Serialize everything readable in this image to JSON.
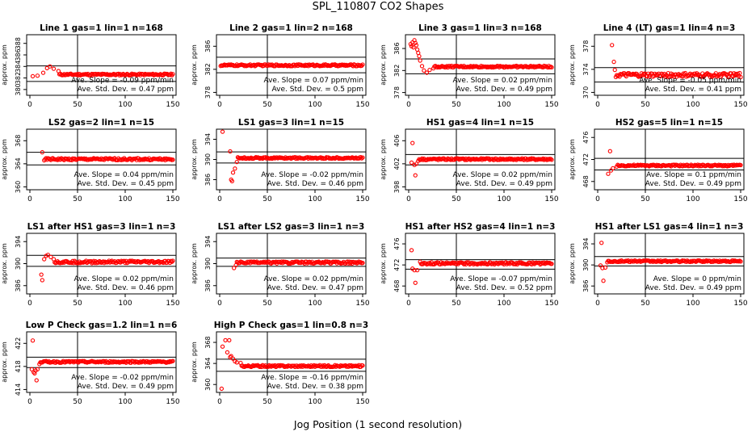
{
  "figure": {
    "title": "SPL_110807  CO2 Shapes",
    "xlabel": "Jog Position (1 second resolution)"
  },
  "colors": {
    "points": "#ff0000",
    "axes": "#000000"
  },
  "chart_data": [
    {
      "type": "scatter",
      "title": "Line 1 gas=1 lin=1 n=168",
      "ylabel": "approx. ppm",
      "xlim": [
        0,
        150
      ],
      "ylim": [
        379,
        389.5
      ],
      "yticks": [
        380,
        382,
        384,
        386,
        388
      ],
      "xticks": [
        0,
        50,
        100,
        150
      ],
      "hlines": [
        384.1,
        381.4
      ],
      "vline": 50,
      "slope": "Ave. Slope = -0.09 ppm/min",
      "std": "Ave. Std. Dev. = 0.47 ppm",
      "shape": {
        "start": 382.5,
        "steady": 382.6,
        "spikes": [
          [
            3,
            382.3
          ],
          [
            8,
            382.4
          ],
          [
            14,
            382.9
          ],
          [
            18,
            383.7
          ],
          [
            21,
            384.0
          ],
          [
            25,
            383.6
          ],
          [
            30,
            383.2
          ]
        ],
        "noise": 0.15
      }
    },
    {
      "type": "scatter",
      "title": "Line 2 gas=1 lin=2 n=168",
      "ylabel": "approx. ppm",
      "xlim": [
        0,
        150
      ],
      "ylim": [
        377.5,
        388
      ],
      "yticks": [
        378,
        382,
        386
      ],
      "xticks": [
        0,
        50,
        100,
        150
      ],
      "hlines": [
        384.1,
        381.4
      ],
      "vline": 50,
      "slope": "Ave. Slope = 0.07 ppm/min",
      "std": "Ave. Std. Dev. = 0.5 ppm",
      "shape": {
        "start": 382.7,
        "steady": 382.7,
        "spikes": [],
        "noise": 0.15
      }
    },
    {
      "type": "scatter",
      "title": "Line 3 gas=1 lin=3 n=168",
      "ylabel": "approx. ppm",
      "xlim": [
        0,
        150
      ],
      "ylim": [
        377.5,
        388.5
      ],
      "yticks": [
        378,
        382,
        386
      ],
      "xticks": [
        0,
        50,
        100,
        150
      ],
      "hlines": [
        384.1,
        381.4
      ],
      "vline": 50,
      "slope": "Ave. Slope = 0.02 ppm/min",
      "std": "Ave. Std. Dev. = 0.49 ppm",
      "shape": {
        "start": 382.7,
        "steady": 382.7,
        "spikes": [
          [
            2,
            386.8
          ],
          [
            3,
            386.4
          ],
          [
            4,
            387.1
          ],
          [
            5,
            386.2
          ],
          [
            6,
            387.5
          ],
          [
            7,
            387.0
          ],
          [
            8,
            386.6
          ],
          [
            9,
            385.8
          ],
          [
            10,
            385.2
          ],
          [
            11,
            384.6
          ],
          [
            12,
            383.8
          ],
          [
            14,
            382.8
          ],
          [
            16,
            382.0
          ],
          [
            19,
            381.6
          ],
          [
            22,
            382.1
          ],
          [
            26,
            382.4
          ]
        ],
        "noise": 0.15
      }
    },
    {
      "type": "scatter",
      "title": "Line 4 (LT) gas=1 lin=4 n=3",
      "ylabel": "approx. ppm",
      "xlim": [
        0,
        150
      ],
      "ylim": [
        369.5,
        380
      ],
      "yticks": [
        370,
        374,
        378
      ],
      "xticks": [
        0,
        50,
        100,
        150
      ],
      "hlines": [
        374.3,
        371.8
      ],
      "vline": 50,
      "slope": "Ave. Slope = -0.05 ppm/min",
      "std": "Ave. Std. Dev. = 0.41 ppm",
      "shape": {
        "start": 373.0,
        "steady": 373.0,
        "spikes": [
          [
            15,
            378.2
          ],
          [
            17,
            375.3
          ],
          [
            18,
            373.9
          ]
        ],
        "noise": 0.35
      }
    },
    {
      "type": "scatter",
      "title": "LS2 gas=2 lin=1 n=15",
      "ylabel": "approx. ppm",
      "xlim": [
        0,
        150
      ],
      "ylim": [
        359.5,
        370
      ],
      "yticks": [
        360,
        364,
        368
      ],
      "xticks": [
        0,
        50,
        100,
        150
      ],
      "hlines": [
        366.0,
        363.8
      ],
      "vline": 50,
      "slope": "Ave. Slope = 0.04 ppm/min",
      "std": "Ave. Std. Dev. = 0.45 ppm",
      "shape": {
        "start": 364.8,
        "steady": 364.8,
        "spikes": [
          [
            13,
            366.0
          ],
          [
            15,
            364.6
          ]
        ],
        "noise": 0.18
      }
    },
    {
      "type": "scatter",
      "title": "LS1 gas=3 lin=1 n=15",
      "ylabel": "approx. ppm",
      "xlim": [
        0,
        150
      ],
      "ylim": [
        384,
        396
      ],
      "yticks": [
        386,
        390,
        394
      ],
      "xticks": [
        0,
        50,
        100,
        150
      ],
      "hlines": [
        391.5,
        389.3
      ],
      "vline": 50,
      "slope": "Ave. Slope = -0.02 ppm/min",
      "std": "Ave. Std. Dev. = 0.46 ppm",
      "shape": {
        "start": 390.3,
        "steady": 390.3,
        "spikes": [
          [
            3,
            395.5
          ],
          [
            11,
            391.6
          ],
          [
            12,
            386.0
          ],
          [
            13,
            385.7
          ],
          [
            14,
            387.4
          ],
          [
            16,
            388.2
          ],
          [
            18,
            389.5
          ]
        ],
        "noise": 0.15
      }
    },
    {
      "type": "scatter",
      "title": "HS1 gas=4 lin=1 n=15",
      "ylabel": "approx. ppm",
      "xlim": [
        0,
        150
      ],
      "ylim": [
        397.5,
        408
      ],
      "yticks": [
        398,
        402,
        406
      ],
      "xticks": [
        0,
        50,
        100,
        150
      ],
      "hlines": [
        403.6,
        401.8
      ],
      "vline": 50,
      "slope": "Ave. Slope = 0.02 ppm/min",
      "std": "Ave. Std. Dev. = 0.49 ppm",
      "shape": {
        "start": 402.8,
        "steady": 402.8,
        "spikes": [
          [
            3,
            402.2
          ],
          [
            4,
            405.6
          ],
          [
            6,
            401.8
          ],
          [
            7,
            400.0
          ],
          [
            8,
            402.0
          ],
          [
            10,
            402.5
          ]
        ],
        "noise": 0.15
      }
    },
    {
      "type": "scatter",
      "title": "HS2 gas=5 lin=1 n=15",
      "ylabel": "approx. ppm",
      "xlim": [
        0,
        150
      ],
      "ylim": [
        466.5,
        477.5
      ],
      "yticks": [
        468,
        472,
        476
      ],
      "xticks": [
        0,
        50,
        100,
        150
      ],
      "hlines": [
        472.2,
        470.1
      ],
      "vline": 50,
      "slope": "Ave. Slope = 0.1 ppm/min",
      "std": "Ave. Std. Dev. = 0.49 ppm",
      "shape": {
        "start": 470.9,
        "steady": 470.9,
        "spikes": [
          [
            11,
            469.4
          ],
          [
            13,
            473.5
          ],
          [
            14,
            470.0
          ],
          [
            16,
            470.4
          ],
          [
            20,
            470.7
          ]
        ],
        "noise": 0.15
      }
    },
    {
      "type": "scatter",
      "title": "LS1 after HS1 gas=3 lin=1 n=3",
      "ylabel": "approx. ppm",
      "xlim": [
        0,
        150
      ],
      "ylim": [
        384.5,
        395.5
      ],
      "yticks": [
        386,
        390,
        394
      ],
      "xticks": [
        0,
        50,
        100,
        150
      ],
      "hlines": [
        391.5,
        389.5
      ],
      "vline": 50,
      "slope": "Ave. Slope = 0.02 ppm/min",
      "std": "Ave. Std. Dev. = 0.46 ppm",
      "shape": {
        "start": 390.5,
        "steady": 390.3,
        "spikes": [
          [
            12,
            388.0
          ],
          [
            13,
            387.0
          ],
          [
            15,
            390.8
          ],
          [
            17,
            391.4
          ],
          [
            19,
            391.6
          ],
          [
            22,
            391.2
          ],
          [
            25,
            390.8
          ]
        ],
        "noise": 0.22
      }
    },
    {
      "type": "scatter",
      "title": "LS1 after LS2 gas=3 lin=1 n=3",
      "ylabel": "approx. ppm",
      "xlim": [
        0,
        150
      ],
      "ylim": [
        384.5,
        395.5
      ],
      "yticks": [
        386,
        390,
        394
      ],
      "xticks": [
        0,
        50,
        100,
        150
      ],
      "hlines": [
        391.0,
        389.5
      ],
      "vline": 50,
      "slope": "Ave. Slope = 0.02 ppm/min",
      "std": "Ave. Std. Dev. = 0.47 ppm",
      "shape": {
        "start": 389.6,
        "steady": 390.2,
        "spikes": [
          [
            15,
            389.2
          ],
          [
            17,
            389.7
          ]
        ],
        "noise": 0.18
      }
    },
    {
      "type": "scatter",
      "title": "HS1 after HS2 gas=4 lin=1 n=3",
      "ylabel": "approx. ppm",
      "xlim": [
        0,
        150
      ],
      "ylim": [
        466.5,
        478
      ],
      "yticks": [
        468,
        472,
        476
      ],
      "xticks": [
        0,
        50,
        100,
        150
      ],
      "hlines": [
        473.0,
        471.2
      ],
      "vline": 50,
      "slope": "Ave. Slope = -0.07 ppm/min",
      "std": "Ave. Std. Dev. = 0.52 ppm",
      "shape": {
        "start": 472.3,
        "steady": 472.3,
        "spikes": [
          [
            3,
            474.8
          ],
          [
            4,
            471.3
          ],
          [
            6,
            471.0
          ],
          [
            7,
            468.6
          ],
          [
            9,
            471.0
          ],
          [
            12,
            472.6
          ]
        ],
        "noise": 0.2
      }
    },
    {
      "type": "scatter",
      "title": "HS1 after LS1 gas=4 lin=1 n=3",
      "ylabel": "approx. ppm",
      "xlim": [
        0,
        150
      ],
      "ylim": [
        384.5,
        396
      ],
      "yticks": [
        386,
        390,
        394
      ],
      "xticks": [
        0,
        50,
        100,
        150
      ],
      "hlines": [
        391.6,
        389.8
      ],
      "vline": 50,
      "slope": "Ave. Slope = 0 ppm/min",
      "std": "Ave. Std. Dev. = 0.49 ppm",
      "shape": {
        "start": 390.7,
        "steady": 390.7,
        "spikes": [
          [
            3,
            389.9
          ],
          [
            4,
            394.2
          ],
          [
            5,
            389.4
          ],
          [
            6,
            387.0
          ],
          [
            8,
            389.5
          ],
          [
            10,
            390.5
          ]
        ],
        "noise": 0.15
      }
    },
    {
      "type": "scatter",
      "title": "Low P Check gas=1.2 lin=1 n=6",
      "ylabel": "approx. ppm",
      "xlim": [
        0,
        150
      ],
      "ylim": [
        413.5,
        424
      ],
      "yticks": [
        414,
        418,
        422
      ],
      "xticks": [
        0,
        50,
        100,
        150
      ],
      "hlines": [
        419.6,
        417.8
      ],
      "vline": 50,
      "slope": "Ave. Slope = -0.02 ppm/min",
      "std": "Ave. Std. Dev. = 0.49 ppm",
      "shape": {
        "start": 418.8,
        "steady": 418.8,
        "spikes": [
          [
            2,
            417.5
          ],
          [
            3,
            422.5
          ],
          [
            4,
            417.0
          ],
          [
            5,
            416.8
          ],
          [
            6,
            417.3
          ],
          [
            7,
            415.6
          ],
          [
            8,
            417.5
          ],
          [
            10,
            418.4
          ]
        ],
        "noise": 0.15
      }
    },
    {
      "type": "scatter",
      "title": "High P Check gas=1 lin=0.8 n=3",
      "ylabel": "approx. ppm",
      "xlim": [
        0,
        150
      ],
      "ylim": [
        358.5,
        370
      ],
      "yticks": [
        360,
        364,
        368
      ],
      "xticks": [
        0,
        50,
        100,
        150
      ],
      "hlines": [
        364.8,
        362.5
      ],
      "vline": 50,
      "slope": "Ave. Slope = -0.16 ppm/min",
      "std": "Ave. Std. Dev. = 0.38 ppm",
      "shape": {
        "start": 363.7,
        "steady": 363.5,
        "spikes": [
          [
            2,
            359.2
          ],
          [
            3,
            367.2
          ],
          [
            6,
            368.4
          ],
          [
            8,
            366.1
          ],
          [
            10,
            368.4
          ],
          [
            11,
            365.2
          ],
          [
            12,
            365.4
          ],
          [
            14,
            364.9
          ],
          [
            16,
            364.4
          ],
          [
            18,
            364.2
          ],
          [
            22,
            364.1
          ]
        ],
        "noise": 0.17
      }
    }
  ]
}
